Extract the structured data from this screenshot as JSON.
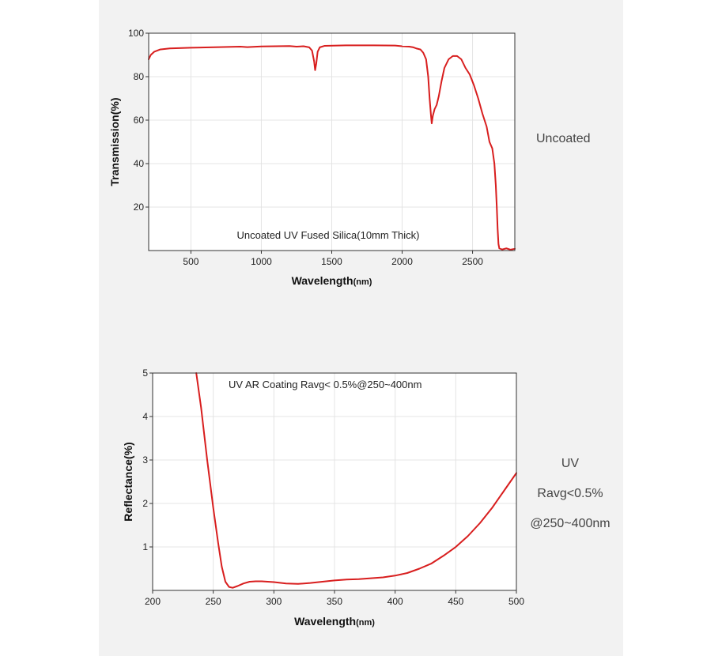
{
  "accent_color": "#d81e1e",
  "chart_data": [
    {
      "type": "line",
      "annotation": "Uncoated UV Fused Silica(10mm Thick)",
      "xlabel": "Wavelength",
      "xlabel_unit": "(nm)",
      "ylabel": "Transmission(%)",
      "xlim": [
        200,
        2800
      ],
      "ylim": [
        0,
        100
      ],
      "xticks": [
        500,
        1000,
        1500,
        2000,
        2500
      ],
      "yticks": [
        20,
        40,
        60,
        80,
        100
      ],
      "grid": true,
      "side_label": [
        "Uncoated"
      ],
      "series": [
        {
          "color": "#d81e1e",
          "points": [
            [
              200,
              88
            ],
            [
              215,
              90
            ],
            [
              240,
              91.5
            ],
            [
              280,
              92.5
            ],
            [
              350,
              93
            ],
            [
              500,
              93.3
            ],
            [
              700,
              93.6
            ],
            [
              850,
              93.8
            ],
            [
              900,
              93.6
            ],
            [
              1000,
              93.9
            ],
            [
              1100,
              94
            ],
            [
              1200,
              94.1
            ],
            [
              1250,
              93.8
            ],
            [
              1300,
              94
            ],
            [
              1340,
              93.5
            ],
            [
              1360,
              92
            ],
            [
              1375,
              87
            ],
            [
              1382,
              83
            ],
            [
              1390,
              86
            ],
            [
              1400,
              91.5
            ],
            [
              1415,
              93.5
            ],
            [
              1450,
              94.2
            ],
            [
              1600,
              94.4
            ],
            [
              1800,
              94.4
            ],
            [
              1950,
              94.3
            ],
            [
              2000,
              94
            ],
            [
              2050,
              93.8
            ],
            [
              2080,
              93.5
            ],
            [
              2100,
              93
            ],
            [
              2130,
              92.5
            ],
            [
              2150,
              91
            ],
            [
              2170,
              88
            ],
            [
              2185,
              80
            ],
            [
              2195,
              70
            ],
            [
              2205,
              62
            ],
            [
              2210,
              58.5
            ],
            [
              2218,
              62
            ],
            [
              2230,
              65
            ],
            [
              2245,
              67
            ],
            [
              2260,
              71
            ],
            [
              2280,
              78
            ],
            [
              2300,
              84
            ],
            [
              2330,
              88
            ],
            [
              2360,
              89.5
            ],
            [
              2390,
              89.5
            ],
            [
              2420,
              88
            ],
            [
              2450,
              84
            ],
            [
              2480,
              81
            ],
            [
              2510,
              76
            ],
            [
              2540,
              70
            ],
            [
              2570,
              63
            ],
            [
              2600,
              57
            ],
            [
              2620,
              50
            ],
            [
              2640,
              47
            ],
            [
              2655,
              40
            ],
            [
              2665,
              30
            ],
            [
              2672,
              20
            ],
            [
              2678,
              10
            ],
            [
              2684,
              3
            ],
            [
              2690,
              1
            ],
            [
              2710,
              0.5
            ],
            [
              2740,
              1
            ],
            [
              2770,
              0.4
            ],
            [
              2800,
              0.8
            ]
          ]
        }
      ]
    },
    {
      "type": "line",
      "annotation": "UV AR Coating Ravg< 0.5%@250~400nm",
      "xlabel": "Wavelength",
      "xlabel_unit": "(nm)",
      "ylabel": "Reflectance(%)",
      "xlim": [
        200,
        500
      ],
      "ylim": [
        0,
        5
      ],
      "xticks": [
        200,
        250,
        300,
        350,
        400,
        450,
        500
      ],
      "yticks": [
        1,
        2,
        3,
        4,
        5
      ],
      "grid": true,
      "side_label": [
        "UV",
        "Ravg<0.5%",
        "@250~400nm"
      ],
      "series": [
        {
          "color": "#d81e1e",
          "points": [
            [
              236,
              5
            ],
            [
              240,
              4.2
            ],
            [
              245,
              3.0
            ],
            [
              250,
              1.9
            ],
            [
              254,
              1.1
            ],
            [
              257,
              0.55
            ],
            [
              260,
              0.2
            ],
            [
              263,
              0.08
            ],
            [
              266,
              0.06
            ],
            [
              270,
              0.1
            ],
            [
              275,
              0.16
            ],
            [
              280,
              0.2
            ],
            [
              285,
              0.21
            ],
            [
              290,
              0.21
            ],
            [
              295,
              0.2
            ],
            [
              300,
              0.19
            ],
            [
              310,
              0.16
            ],
            [
              320,
              0.15
            ],
            [
              330,
              0.17
            ],
            [
              340,
              0.2
            ],
            [
              350,
              0.23
            ],
            [
              360,
              0.25
            ],
            [
              370,
              0.26
            ],
            [
              380,
              0.28
            ],
            [
              390,
              0.3
            ],
            [
              400,
              0.34
            ],
            [
              410,
              0.4
            ],
            [
              420,
              0.5
            ],
            [
              430,
              0.62
            ],
            [
              440,
              0.8
            ],
            [
              450,
              1.0
            ],
            [
              460,
              1.25
            ],
            [
              470,
              1.55
            ],
            [
              480,
              1.9
            ],
            [
              490,
              2.3
            ],
            [
              500,
              2.7
            ]
          ]
        }
      ]
    }
  ]
}
